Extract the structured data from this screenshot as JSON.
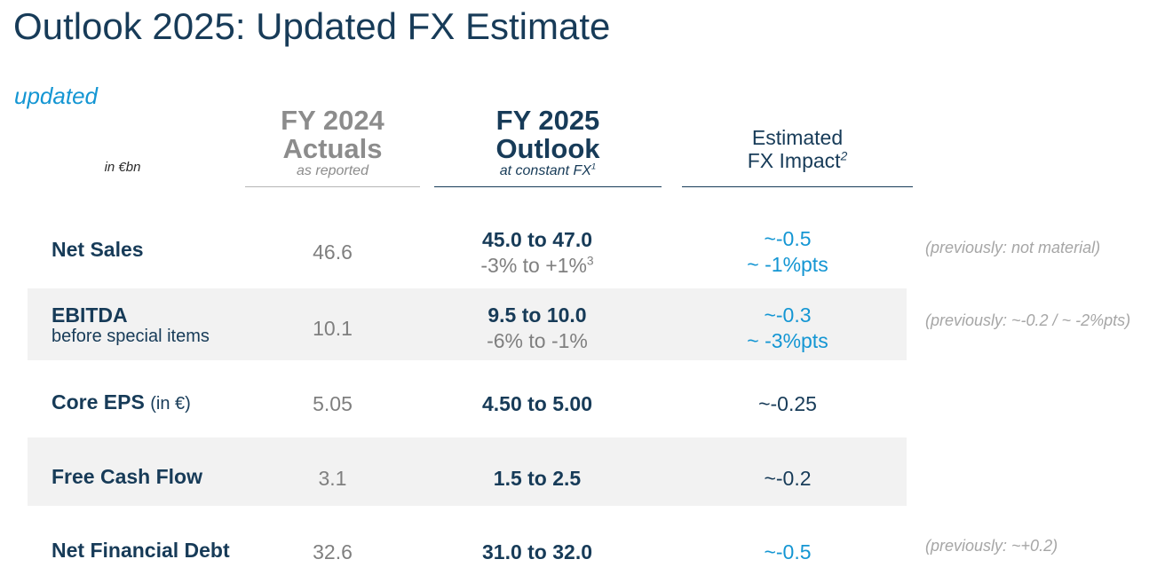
{
  "title": "Outlook 2025: Updated FX Estimate",
  "tag": "updated",
  "unit": "in €bn",
  "headers": {
    "fy2024": {
      "line1": "FY 2024",
      "line2": "Actuals",
      "sub": "as reported"
    },
    "fy2025": {
      "line1": "FY 2025",
      "line2": "Outlook",
      "sub": "at constant FX",
      "sub_sup": "1"
    },
    "fx": {
      "line1": "Estimated",
      "line2": "FX Impact",
      "line2_sup": "2"
    }
  },
  "rows": [
    {
      "label": "Net Sales",
      "actual": "46.6",
      "outlook": "45.0 to 47.0",
      "outlook_growth": "-3% to +1%",
      "outlook_growth_sup": "3",
      "fx": "~-0.5",
      "fx_pts": "~ -1%pts",
      "note": "(previously: not material)"
    },
    {
      "label": "EBITDA",
      "sublabel": "before special items",
      "actual": "10.1",
      "outlook": "9.5 to 10.0",
      "outlook_growth": "-6% to -1%",
      "fx": "~-0.3",
      "fx_pts": "~ -3%pts",
      "note": "(previously: ~-0.2 / ~ -2%pts)"
    },
    {
      "label": "Core EPS",
      "label_suffix": "(in €)",
      "actual": "5.05",
      "outlook": "4.50 to 5.00",
      "fx": "~-0.25"
    },
    {
      "label": "Free Cash Flow",
      "actual": "3.1",
      "outlook": "1.5 to 2.5",
      "fx": "~-0.2"
    },
    {
      "label": "Net Financial Debt",
      "actual": "32.6",
      "outlook": "31.0 to 32.0",
      "fx": "~-0.5",
      "note": "(previously: ~+0.2)"
    }
  ],
  "colors": {
    "navy": "#173b58",
    "blue": "#1496d3",
    "gray": "#7f7f7f",
    "note_gray": "#a6a6a6",
    "band": "#f2f2f2"
  }
}
